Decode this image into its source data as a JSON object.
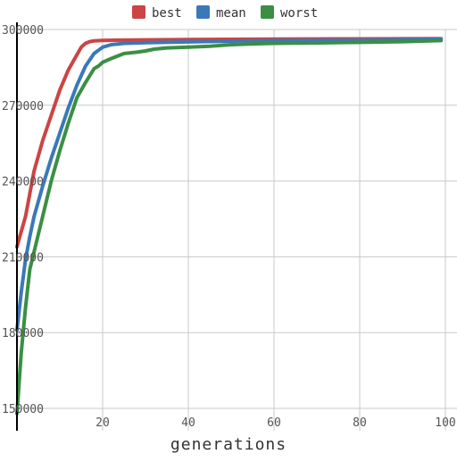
{
  "chart_data": {
    "type": "line",
    "title": "",
    "xlabel": "generations",
    "ylabel": "",
    "xlim": [
      0,
      100
    ],
    "ylim": [
      150000,
      300000
    ],
    "x_ticks": [
      20,
      40,
      60,
      80,
      100
    ],
    "y_ticks": [
      150000,
      180000,
      210000,
      240000,
      270000,
      300000
    ],
    "grid": true,
    "legend_position": "top",
    "series": [
      {
        "name": "best",
        "color": "#cc4444",
        "x": [
          0,
          2,
          4,
          6,
          8,
          10,
          12,
          14,
          15,
          16,
          17,
          18,
          20,
          25,
          30,
          40,
          50,
          60,
          80,
          99
        ],
        "y": [
          214000,
          226000,
          244000,
          256000,
          266000,
          276000,
          284000,
          290000,
          293000,
          294500,
          295200,
          295500,
          295700,
          295800,
          295900,
          296000,
          296100,
          296200,
          296300,
          296400
        ]
      },
      {
        "name": "mean",
        "color": "#3a79b8",
        "x": [
          0,
          1,
          2,
          3,
          4,
          6,
          8,
          10,
          12,
          14,
          16,
          18,
          20,
          22,
          25,
          30,
          40,
          50,
          60,
          80,
          99
        ],
        "y": [
          181000,
          196000,
          209000,
          218000,
          226000,
          238000,
          249000,
          259000,
          269000,
          278000,
          285500,
          290500,
          293000,
          294000,
          294500,
          294800,
          295100,
          295400,
          295600,
          295800,
          296200
        ]
      },
      {
        "name": "worst",
        "color": "#3a8f43",
        "x": [
          0,
          1,
          2,
          3,
          4,
          6,
          8,
          10,
          12,
          14,
          16,
          18,
          19,
          20,
          22,
          25,
          28,
          30,
          32,
          35,
          40,
          45,
          50,
          55,
          60,
          70,
          80,
          90,
          99
        ],
        "y": [
          148000,
          172000,
          190000,
          205000,
          212000,
          226000,
          240000,
          252000,
          263000,
          273000,
          279000,
          284500,
          285500,
          287000,
          288500,
          290500,
          291000,
          291500,
          292200,
          292700,
          293000,
          293400,
          294000,
          294300,
          294500,
          294700,
          294900,
          295200,
          295600
        ]
      }
    ]
  }
}
